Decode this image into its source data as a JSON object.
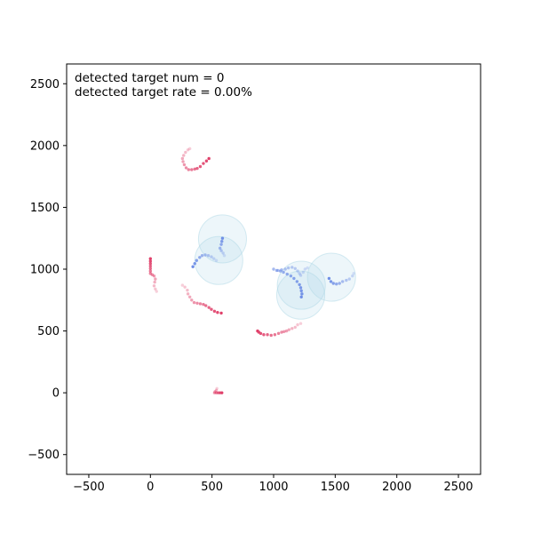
{
  "chart_data": {
    "type": "scatter",
    "title": "",
    "xlabel": "",
    "ylabel": "",
    "xlim": [
      -680,
      2680
    ],
    "ylim": [
      -660,
      2660
    ],
    "xticks": [
      -500,
      0,
      500,
      1000,
      1500,
      2000,
      2500
    ],
    "yticks": [
      -500,
      0,
      500,
      1000,
      1500,
      2000,
      2500
    ],
    "xtick_labels": [
      "−500",
      "0",
      "500",
      "1000",
      "1500",
      "2000",
      "2500"
    ],
    "ytick_labels": [
      "−500",
      "0",
      "500",
      "1000",
      "1500",
      "2000",
      "2500"
    ],
    "grid": false,
    "annotations": [
      "detected target num = 0",
      "detected target rate = 0.00%"
    ],
    "colors": {
      "red_track": "#e0406a",
      "blue_track": "#6f8fe6",
      "circle_fill": "#add8e6"
    },
    "circles": [
      {
        "cx": 585,
        "cy": 1245,
        "r": 195
      },
      {
        "cx": 555,
        "cy": 1070,
        "r": 195
      },
      {
        "cx": 1225,
        "cy": 870,
        "r": 195
      },
      {
        "cx": 1220,
        "cy": 790,
        "r": 195
      },
      {
        "cx": 1470,
        "cy": 935,
        "r": 195
      }
    ],
    "red_tracks": [
      {
        "points": [
          [
            475,
            1895
          ],
          [
            455,
            1875
          ],
          [
            430,
            1855
          ],
          [
            405,
            1830
          ],
          [
            380,
            1815
          ],
          [
            360,
            1810
          ],
          [
            335,
            1805
          ],
          [
            310,
            1805
          ],
          [
            290,
            1820
          ],
          [
            275,
            1845
          ],
          [
            265,
            1870
          ],
          [
            260,
            1895
          ],
          [
            270,
            1920
          ],
          [
            285,
            1945
          ],
          [
            305,
            1965
          ],
          [
            320,
            1975
          ]
        ]
      },
      {
        "points": [
          [
            0,
            1085
          ],
          [
            0,
            1065
          ],
          [
            0,
            1045
          ],
          [
            0,
            1025
          ],
          [
            0,
            1005
          ],
          [
            0,
            985
          ],
          [
            0,
            965
          ],
          [
            15,
            955
          ],
          [
            30,
            945
          ],
          [
            40,
            920
          ],
          [
            35,
            895
          ],
          [
            30,
            865
          ],
          [
            40,
            840
          ],
          [
            50,
            820
          ]
        ]
      },
      {
        "points": [
          [
            575,
            645
          ],
          [
            545,
            650
          ],
          [
            520,
            660
          ],
          [
            495,
            675
          ],
          [
            475,
            690
          ],
          [
            450,
            705
          ],
          [
            430,
            715
          ],
          [
            405,
            720
          ],
          [
            380,
            725
          ],
          [
            355,
            730
          ],
          [
            335,
            750
          ],
          [
            320,
            775
          ],
          [
            305,
            800
          ],
          [
            300,
            830
          ],
          [
            280,
            855
          ],
          [
            260,
            870
          ]
        ]
      },
      {
        "points": [
          [
            870,
            500
          ],
          [
            880,
            490
          ],
          [
            895,
            480
          ],
          [
            920,
            470
          ],
          [
            950,
            470
          ],
          [
            980,
            465
          ],
          [
            1010,
            470
          ],
          [
            1040,
            480
          ],
          [
            1065,
            490
          ],
          [
            1085,
            495
          ],
          [
            1105,
            500
          ],
          [
            1125,
            510
          ],
          [
            1150,
            520
          ],
          [
            1175,
            530
          ],
          [
            1195,
            550
          ],
          [
            1220,
            560
          ]
        ]
      },
      {
        "points": [
          [
            580,
            0
          ],
          [
            565,
            0
          ],
          [
            550,
            0
          ],
          [
            535,
            0
          ],
          [
            520,
            0
          ],
          [
            525,
            10
          ],
          [
            535,
            20
          ],
          [
            540,
            35
          ]
        ]
      }
    ],
    "blue_tracks": [
      {
        "points": [
          [
            585,
            1250
          ],
          [
            580,
            1225
          ],
          [
            575,
            1200
          ],
          [
            565,
            1170
          ],
          [
            575,
            1150
          ],
          [
            590,
            1130
          ],
          [
            600,
            1110
          ]
        ]
      },
      {
        "points": [
          [
            345,
            1020
          ],
          [
            360,
            1045
          ],
          [
            375,
            1070
          ],
          [
            400,
            1095
          ],
          [
            420,
            1110
          ],
          [
            445,
            1115
          ],
          [
            470,
            1110
          ],
          [
            495,
            1100
          ],
          [
            515,
            1085
          ],
          [
            535,
            1070
          ]
        ]
      },
      {
        "points": [
          [
            1225,
            775
          ],
          [
            1230,
            800
          ],
          [
            1225,
            825
          ],
          [
            1220,
            850
          ],
          [
            1210,
            875
          ],
          [
            1190,
            900
          ],
          [
            1165,
            925
          ],
          [
            1140,
            945
          ],
          [
            1110,
            960
          ],
          [
            1080,
            975
          ],
          [
            1055,
            985
          ],
          [
            1025,
            990
          ],
          [
            1000,
            1000
          ],
          [
            1035,
            990
          ],
          [
            1065,
            995
          ],
          [
            1095,
            1000
          ],
          [
            1120,
            1010
          ],
          [
            1150,
            1015
          ],
          [
            1175,
            1005
          ],
          [
            1195,
            985
          ],
          [
            1210,
            965
          ],
          [
            1220,
            950
          ],
          [
            1240,
            975
          ],
          [
            1255,
            1000
          ],
          [
            1275,
            1010
          ]
        ]
      },
      {
        "points": [
          [
            1450,
            925
          ],
          [
            1465,
            900
          ],
          [
            1485,
            885
          ],
          [
            1510,
            880
          ],
          [
            1535,
            885
          ],
          [
            1560,
            900
          ],
          [
            1590,
            910
          ],
          [
            1615,
            920
          ],
          [
            1640,
            945
          ],
          [
            1650,
            965
          ]
        ]
      }
    ]
  }
}
